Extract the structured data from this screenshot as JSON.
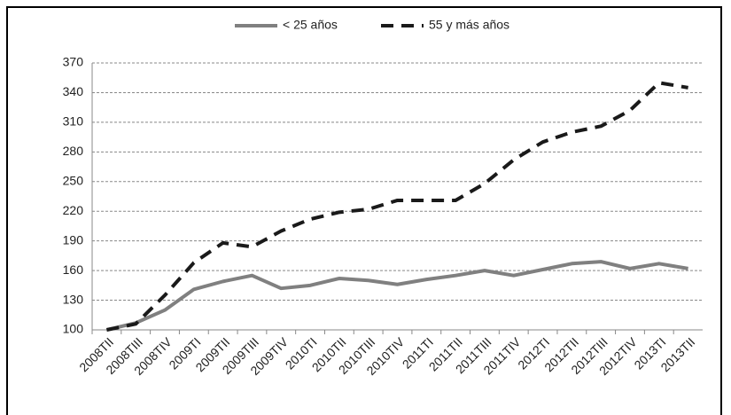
{
  "chart_data": {
    "type": "line",
    "categories": [
      "2008TII",
      "2008TIII",
      "2008TIV",
      "2009TI",
      "2009TII",
      "2009TIII",
      "2009TIV",
      "2010TI",
      "2010TII",
      "2010TIII",
      "2010TIV",
      "2011TI",
      "2011TII",
      "2011TIII",
      "2011TIV",
      "2012TI",
      "2012TII",
      "2012TIII",
      "2012TIV",
      "2013TI",
      "2013TII"
    ],
    "series": [
      {
        "name": "< 25 años",
        "color": "#808080",
        "style": "solid",
        "values": [
          100,
          107,
          120,
          141,
          149,
          155,
          142,
          145,
          152,
          150,
          146,
          151,
          155,
          160,
          155,
          161,
          167,
          169,
          162,
          167,
          162
        ]
      },
      {
        "name": "55 y más años",
        "color": "#1a1a1a",
        "style": "dashed",
        "values": [
          100,
          106,
          135,
          168,
          188,
          184,
          200,
          212,
          219,
          222,
          231,
          231,
          231,
          248,
          272,
          290,
          300,
          306,
          322,
          350,
          345
        ]
      }
    ],
    "ylim": [
      100,
      370
    ],
    "yticks": [
      100,
      130,
      160,
      190,
      220,
      250,
      280,
      310,
      340,
      370
    ],
    "grid": true,
    "legend": "top"
  }
}
